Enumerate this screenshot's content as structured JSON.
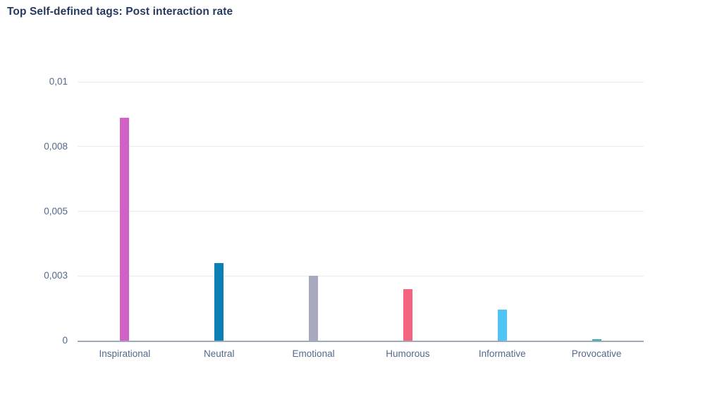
{
  "title": "Top Self-defined tags: Post interaction rate",
  "colors": {
    "background": "#ffffff",
    "title_text": "#253a5e",
    "axis_text": "#54688e",
    "gridline": "#e9ebf3",
    "axis_line": "#9fa9ba"
  },
  "chart_data": {
    "type": "bar",
    "title": "Top Self-defined tags: Post interaction rate",
    "categories": [
      "Inspirational",
      "Neutral",
      "Emotional",
      "Humorous",
      "Informative",
      "Provocative"
    ],
    "values": [
      0.0086,
      0.003,
      0.0025,
      0.002,
      0.0012,
      5e-05
    ],
    "bar_colors": [
      "#d161c5",
      "#0b80b5",
      "#a7aabf",
      "#f4647f",
      "#4fc4f5",
      "#2fb4ac"
    ],
    "xlabel": "",
    "ylabel": "",
    "ylim": [
      0,
      0.01
    ],
    "y_ticks": [
      {
        "value": 0,
        "label": "0"
      },
      {
        "value": 0.0025,
        "label": "0,003"
      },
      {
        "value": 0.005,
        "label": "0,005"
      },
      {
        "value": 0.0075,
        "label": "0,008"
      },
      {
        "value": 0.01,
        "label": "0,01"
      }
    ],
    "grid": true,
    "legend": false,
    "decimal_separator": ","
  }
}
